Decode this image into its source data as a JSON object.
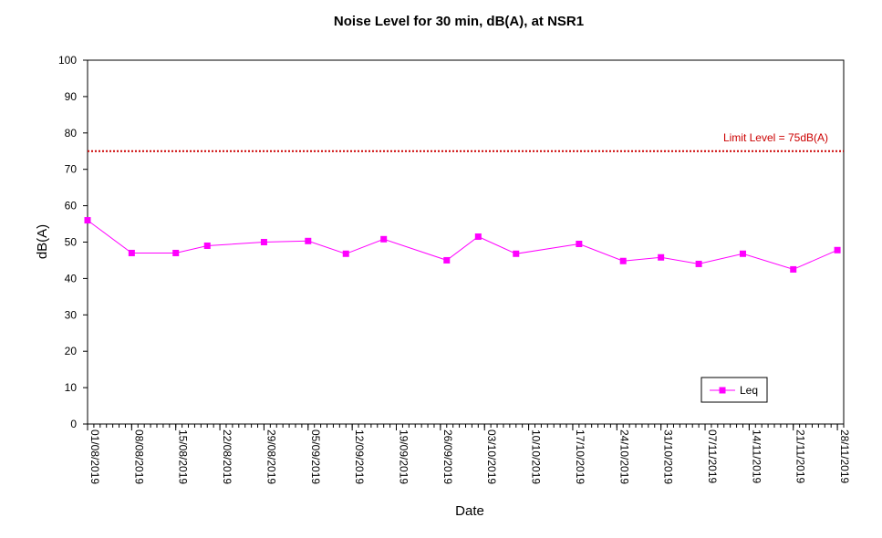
{
  "chart_data": {
    "type": "line",
    "title": "Noise Level for 30 min, dB(A), at NSR1",
    "xlabel": "Date",
    "ylabel": "dB(A)",
    "ylim": [
      0,
      100
    ],
    "y_ticks": [
      0,
      10,
      20,
      30,
      40,
      50,
      60,
      70,
      80,
      90,
      100
    ],
    "x_range": [
      "2019-08-01",
      "2019-11-29"
    ],
    "x_tick_labels": [
      "01/08/2019",
      "08/08/2019",
      "15/08/2019",
      "22/08/2019",
      "29/08/2019",
      "05/09/2019",
      "12/09/2019",
      "19/09/2019",
      "26/09/2019",
      "03/10/2019",
      "10/10/2019",
      "17/10/2019",
      "24/10/2019",
      "31/10/2019",
      "07/11/2019",
      "14/11/2019",
      "21/11/2019",
      "28/11/2019"
    ],
    "x_tick_dates": [
      "2019-08-01",
      "2019-08-08",
      "2019-08-15",
      "2019-08-22",
      "2019-08-29",
      "2019-09-05",
      "2019-09-12",
      "2019-09-19",
      "2019-09-26",
      "2019-10-03",
      "2019-10-10",
      "2019-10-17",
      "2019-10-24",
      "2019-10-31",
      "2019-11-07",
      "2019-11-14",
      "2019-11-21",
      "2019-11-28"
    ],
    "series": [
      {
        "name": "Leq",
        "color": "#ff00ff",
        "marker": "square",
        "x": [
          "2019-08-01",
          "2019-08-08",
          "2019-08-15",
          "2019-08-20",
          "2019-08-29",
          "2019-09-05",
          "2019-09-11",
          "2019-09-17",
          "2019-09-27",
          "2019-10-02",
          "2019-10-08",
          "2019-10-18",
          "2019-10-25",
          "2019-10-31",
          "2019-11-06",
          "2019-11-13",
          "2019-11-21",
          "2019-11-28"
        ],
        "values": [
          56,
          47,
          47,
          49,
          50,
          50.3,
          46.8,
          50.8,
          45,
          51.5,
          46.8,
          49.5,
          44.8,
          45.8,
          44,
          46.8,
          42.5,
          47.8
        ]
      }
    ],
    "reference_lines": [
      {
        "label": "Limit Level  = 75dB(A)",
        "value": 75,
        "color": "#cc0000",
        "style": "dotted"
      }
    ],
    "legend": {
      "position": "bottom-right",
      "entries": [
        "Leq"
      ]
    },
    "grid": false
  }
}
